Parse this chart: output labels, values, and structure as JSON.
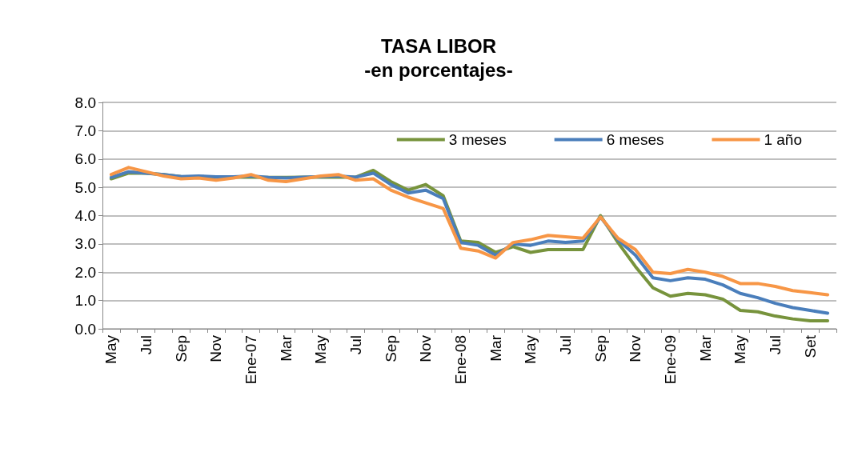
{
  "chart_data": {
    "type": "line",
    "title": "TASA LIBOR",
    "subtitle": "-en porcentajes-",
    "categories": [
      "May",
      null,
      "Jul",
      null,
      "Sep",
      null,
      "Nov",
      null,
      "Ene-07",
      null,
      "Mar",
      null,
      "May",
      null,
      "Jul",
      null,
      "Sep",
      null,
      "Nov",
      null,
      "Ene-08",
      null,
      "Mar",
      null,
      "May",
      null,
      "Jul",
      null,
      "Sep",
      null,
      "Nov",
      null,
      "Ene-09",
      null,
      "Mar",
      null,
      "May",
      null,
      "Jul",
      null,
      "Set",
      null
    ],
    "series": [
      {
        "name": "3 meses",
        "color": "#77933c",
        "values": [
          5.3,
          5.5,
          5.5,
          5.45,
          5.38,
          5.37,
          5.36,
          5.36,
          5.36,
          5.35,
          5.35,
          5.36,
          5.36,
          5.36,
          5.36,
          5.6,
          5.2,
          4.9,
          5.1,
          4.7,
          3.1,
          3.05,
          2.7,
          2.9,
          2.7,
          2.8,
          2.8,
          2.8,
          4.0,
          3.05,
          2.2,
          1.45,
          1.15,
          1.25,
          1.2,
          1.05,
          0.65,
          0.6,
          0.45,
          0.35,
          0.28,
          0.28
        ]
      },
      {
        "name": "6 meses",
        "color": "#4a7ebb",
        "values": [
          5.35,
          5.55,
          5.5,
          5.45,
          5.38,
          5.4,
          5.37,
          5.37,
          5.4,
          5.35,
          5.33,
          5.36,
          5.38,
          5.4,
          5.36,
          5.5,
          5.1,
          4.8,
          4.9,
          4.6,
          3.05,
          2.95,
          2.6,
          3.0,
          2.95,
          3.1,
          3.05,
          3.1,
          3.95,
          3.15,
          2.6,
          1.8,
          1.7,
          1.8,
          1.75,
          1.55,
          1.25,
          1.1,
          0.9,
          0.75,
          0.65,
          0.55
        ]
      },
      {
        "name": "1 año",
        "color": "#f79646",
        "values": [
          5.45,
          5.7,
          5.55,
          5.4,
          5.3,
          5.33,
          5.25,
          5.33,
          5.45,
          5.25,
          5.2,
          5.3,
          5.4,
          5.45,
          5.25,
          5.3,
          4.9,
          4.65,
          4.45,
          4.25,
          2.85,
          2.75,
          2.5,
          3.05,
          3.15,
          3.3,
          3.25,
          3.2,
          3.95,
          3.2,
          2.8,
          2.0,
          1.95,
          2.1,
          2.0,
          1.85,
          1.6,
          1.6,
          1.5,
          1.35,
          1.28,
          1.2
        ]
      }
    ],
    "ylim": [
      0,
      8
    ],
    "yticks": [
      {
        "value": 0,
        "label": "0.0"
      },
      {
        "value": 1,
        "label": "1.0"
      },
      {
        "value": 2,
        "label": "2.0"
      },
      {
        "value": 3,
        "label": "3.0"
      },
      {
        "value": 4,
        "label": "4.0"
      },
      {
        "value": 5,
        "label": "5.0"
      },
      {
        "value": 6,
        "label": "6.0"
      },
      {
        "value": 7,
        "label": "7.0"
      },
      {
        "value": 8,
        "label": "8.0"
      }
    ],
    "grid": "y",
    "legend": "top right",
    "marker": "none",
    "line_style": "solid"
  }
}
